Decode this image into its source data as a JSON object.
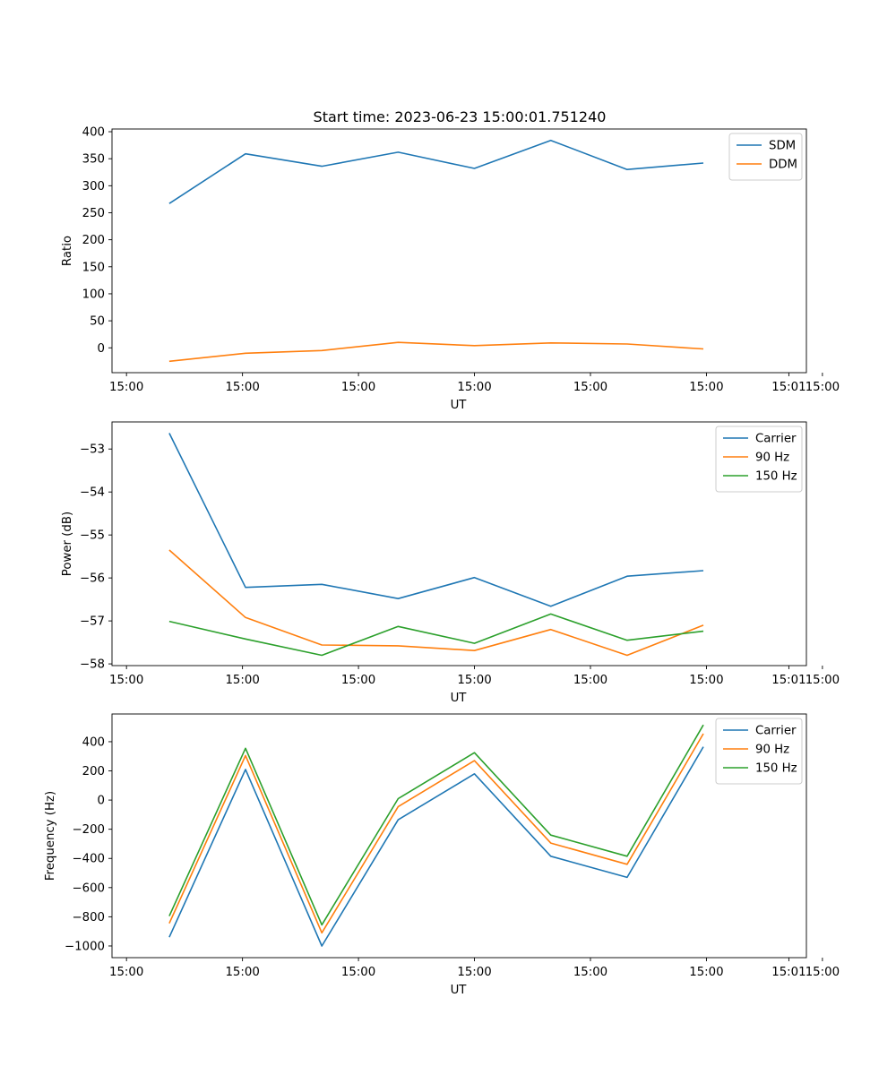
{
  "title": "Start time: 2023-06-23 15:00:01.751240",
  "chart_data": [
    {
      "type": "line",
      "ylabel": "Ratio",
      "xlabel": "UT",
      "x_tick_labels": [
        "15:00",
        "15:00",
        "15:00",
        "15:00",
        "15:00",
        "15:00",
        "15:00"
      ],
      "x_tick_end_label": "15:01",
      "x": [
        1,
        2,
        3,
        4,
        5,
        6,
        7,
        8
      ],
      "xlim": [
        0.25,
        9.35
      ],
      "ylim": [
        -46,
        405
      ],
      "yticks": [
        0,
        50,
        100,
        150,
        200,
        250,
        300,
        350,
        400
      ],
      "legend": "top-right",
      "series": [
        {
          "name": "SDM",
          "color": "#1f77b4",
          "values": [
            267,
            359,
            336,
            362,
            332,
            384,
            330,
            342
          ]
        },
        {
          "name": "DDM",
          "color": "#ff7f0e",
          "values": [
            -25,
            -10,
            -5,
            10,
            4,
            9,
            7,
            -2
          ]
        }
      ]
    },
    {
      "type": "line",
      "ylabel": "Power (dB)",
      "xlabel": "UT",
      "x_tick_labels": [
        "15:00",
        "15:00",
        "15:00",
        "15:00",
        "15:00",
        "15:00",
        "15:00"
      ],
      "x_tick_end_label": "15:01",
      "x": [
        1,
        2,
        3,
        4,
        5,
        6,
        7,
        8
      ],
      "xlim": [
        0.25,
        9.35
      ],
      "ylim": [
        -58.04,
        -52.37
      ],
      "yticks": [
        -58,
        -57,
        -56,
        -55,
        -54,
        -53
      ],
      "legend": "top-right",
      "series": [
        {
          "name": "Carrier",
          "color": "#1f77b4",
          "values": [
            -52.63,
            -56.22,
            -56.15,
            -56.48,
            -55.99,
            -56.66,
            -55.96,
            -55.83
          ]
        },
        {
          "name": "90 Hz",
          "color": "#ff7f0e",
          "values": [
            -55.35,
            -56.92,
            -57.56,
            -57.58,
            -57.69,
            -57.2,
            -57.8,
            -57.1
          ]
        },
        {
          "name": "150 Hz",
          "color": "#2ca02c",
          "values": [
            -57.01,
            -57.42,
            -57.8,
            -57.13,
            -57.52,
            -56.84,
            -57.45,
            -57.24
          ]
        }
      ]
    },
    {
      "type": "line",
      "ylabel": "Frequency (Hz)",
      "xlabel": "UT",
      "x_tick_labels": [
        "15:00",
        "15:00",
        "15:00",
        "15:00",
        "15:00",
        "15:00",
        "15:00"
      ],
      "x_tick_end_label": "15:01",
      "x": [
        1,
        2,
        3,
        4,
        5,
        6,
        7,
        8
      ],
      "xlim": [
        0.25,
        9.35
      ],
      "ylim": [
        -1080,
        590
      ],
      "yticks": [
        -1000,
        -800,
        -600,
        -400,
        -200,
        0,
        200,
        400
      ],
      "legend": "top-right",
      "series": [
        {
          "name": "Carrier",
          "color": "#1f77b4",
          "values": [
            -940,
            210,
            -1000,
            -135,
            180,
            -385,
            -530,
            365
          ]
        },
        {
          "name": "90 Hz",
          "color": "#ff7f0e",
          "values": [
            -845,
            305,
            -910,
            -45,
            270,
            -295,
            -440,
            455
          ]
        },
        {
          "name": "150 Hz",
          "color": "#2ca02c",
          "values": [
            -795,
            355,
            -855,
            10,
            325,
            -240,
            -385,
            515
          ]
        }
      ]
    }
  ]
}
